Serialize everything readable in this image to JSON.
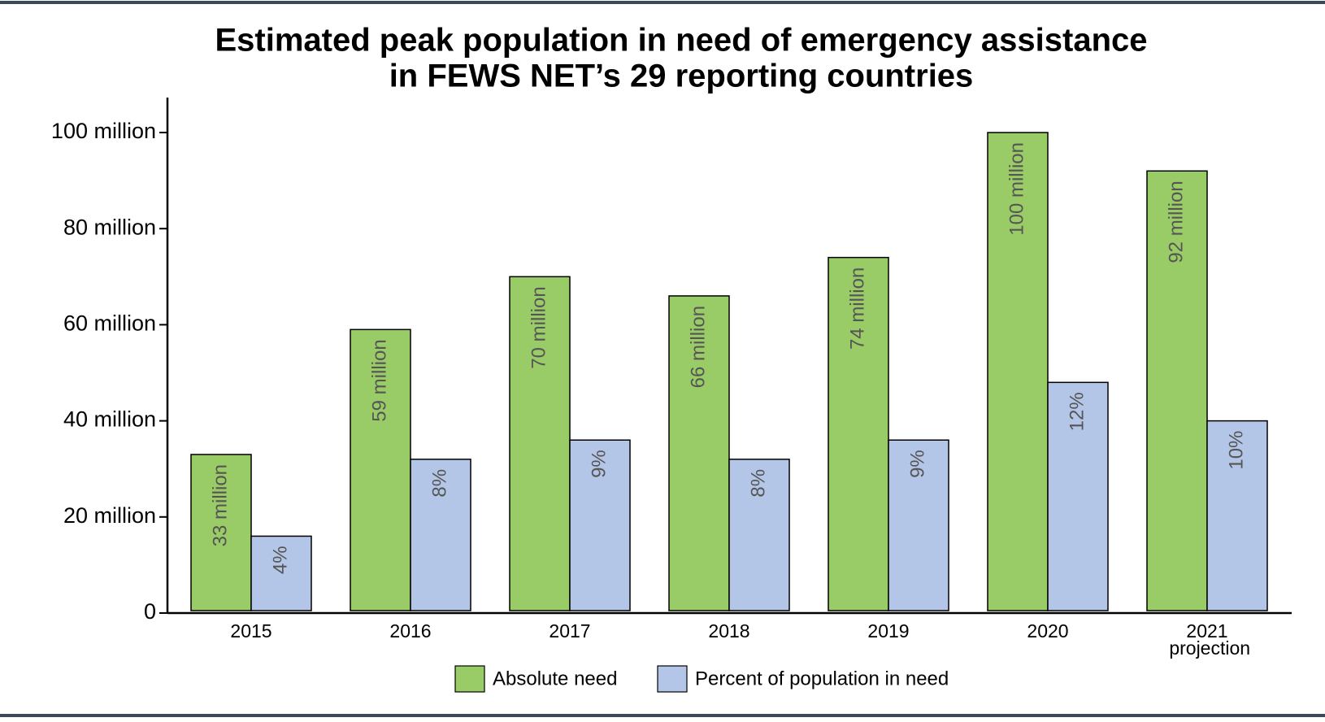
{
  "chart_data": {
    "type": "bar",
    "title": "Estimated peak population in need of emergency assistance",
    "subtitle": "in FEWS NET’s 29 reporting countries",
    "categories": [
      "2015",
      "2016",
      "2017",
      "2018",
      "2019",
      "2020",
      "2021 projection"
    ],
    "series": [
      {
        "name": "Absolute need",
        "color": "#99cc66",
        "values": [
          33000000,
          59000000,
          70000000,
          66000000,
          74000000,
          100000000,
          92000000
        ],
        "value_labels": [
          "33 million",
          "59 million",
          "70 million",
          "66 million",
          "74 million",
          "100 million",
          "92 million"
        ]
      },
      {
        "name": "Percent of population in need",
        "color": "#b4c6e7",
        "axis": "y2",
        "values": [
          4,
          8,
          9,
          8,
          9,
          12,
          10
        ],
        "value_labels": [
          "4%",
          "8%",
          "9%",
          "8%",
          "9%",
          "12%",
          "10%"
        ]
      }
    ],
    "ylim": [
      0,
      100000000
    ],
    "yticks": [
      0,
      {
        "value": 20000000,
        "label": "20 million"
      },
      {
        "value": 40000000,
        "label": "40 million"
      },
      {
        "value": 60000000,
        "label": "60 million"
      },
      {
        "value": 80000000,
        "label": "80 million"
      },
      {
        "value": 100000000,
        "label": "100 million"
      }
    ],
    "y2lim": [
      0,
      25
    ],
    "legend": "bottom"
  }
}
